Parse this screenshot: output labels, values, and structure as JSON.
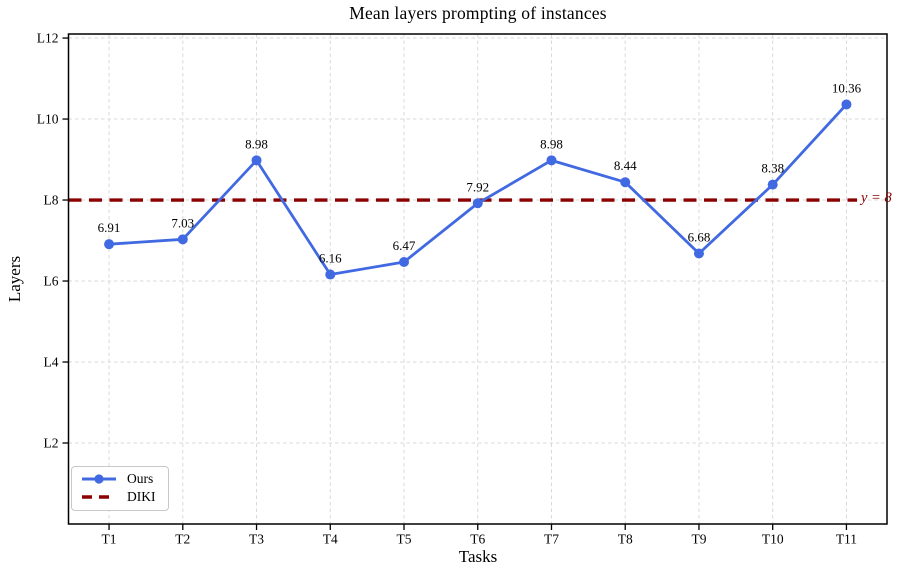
{
  "chart_data": {
    "type": "line",
    "title": "Mean layers prompting of instances",
    "xlabel": "Tasks",
    "ylabel": "Layers",
    "categories": [
      "T1",
      "T2",
      "T3",
      "T4",
      "T5",
      "T6",
      "T7",
      "T8",
      "T9",
      "T10",
      "T11"
    ],
    "series": [
      {
        "name": "Ours",
        "type": "line",
        "color": "#4169e1",
        "marker": "circle",
        "values": [
          6.91,
          7.03,
          8.98,
          6.16,
          6.47,
          7.92,
          8.98,
          8.44,
          6.68,
          8.38,
          10.36
        ],
        "point_labels": [
          "6.91",
          "7.03",
          "8.98",
          "6.16",
          "6.47",
          "7.92",
          "8.98",
          "8.44",
          "6.68",
          "8.38",
          "10.36"
        ]
      },
      {
        "name": "DIKI",
        "type": "hline",
        "color": "#8b0000",
        "linestyle": "dashed",
        "value": 8,
        "annotation": "y = 8"
      }
    ],
    "yticks": [
      {
        "value": 2,
        "label": "L2"
      },
      {
        "value": 4,
        "label": "L4"
      },
      {
        "value": 6,
        "label": "L6"
      },
      {
        "value": 8,
        "label": "L8"
      },
      {
        "value": 10,
        "label": "L10"
      },
      {
        "value": 12,
        "label": "L12"
      }
    ],
    "ylim": [
      0,
      12.1
    ],
    "grid": true,
    "legend_position": "lower left",
    "colors": {
      "grid": "#d9d9d9",
      "spine": "#000000",
      "text": "#000000",
      "annotation": "#8b0000"
    }
  }
}
